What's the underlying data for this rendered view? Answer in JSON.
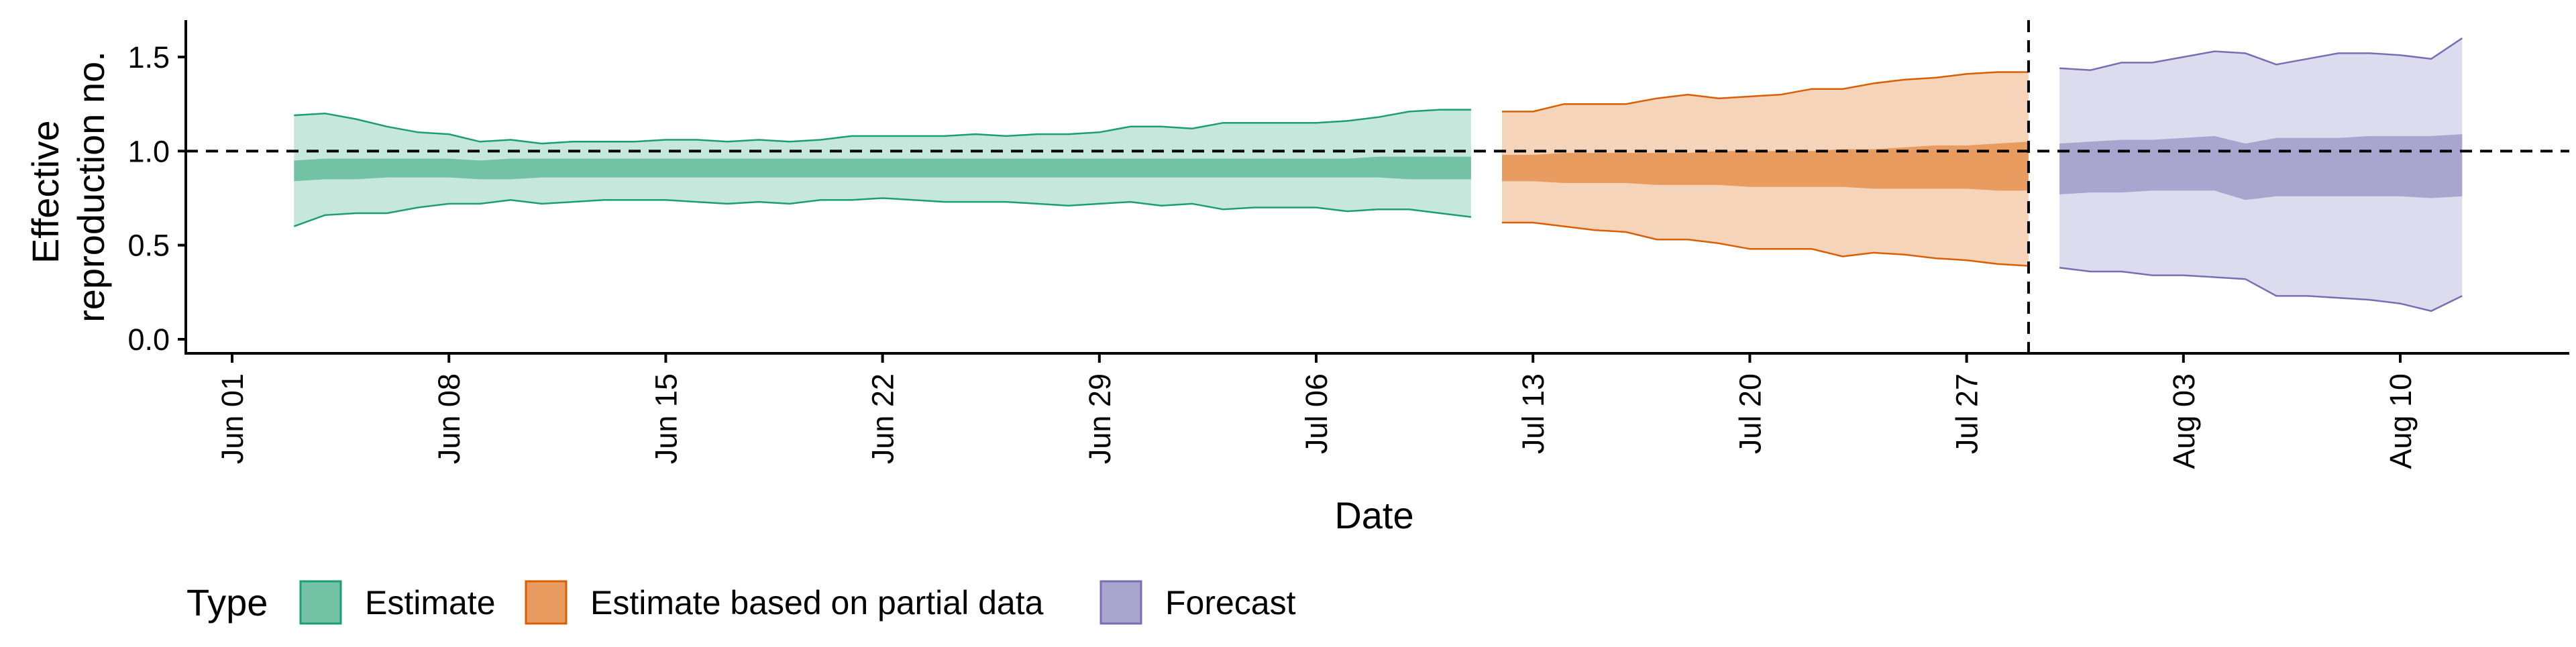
{
  "chart_data": {
    "type": "area",
    "title": "",
    "xlabel": "Date",
    "ylabel_lines": [
      "Effective",
      "reproduction no."
    ],
    "x_range": [
      "2020-05-30",
      "2020-08-16"
    ],
    "y_range": [
      -0.05,
      1.67
    ],
    "y_ticks": [
      {
        "value": 0.0,
        "label": "0.0"
      },
      {
        "value": 0.5,
        "label": "0.5"
      },
      {
        "value": 1.0,
        "label": "1.0"
      },
      {
        "value": 1.5,
        "label": "1.5"
      }
    ],
    "x_ticks": [
      {
        "date": "2020-06-01",
        "label": "Jun 01"
      },
      {
        "date": "2020-06-08",
        "label": "Jun 08"
      },
      {
        "date": "2020-06-15",
        "label": "Jun 15"
      },
      {
        "date": "2020-06-22",
        "label": "Jun 22"
      },
      {
        "date": "2020-06-29",
        "label": "Jun 29"
      },
      {
        "date": "2020-07-06",
        "label": "Jul 06"
      },
      {
        "date": "2020-07-13",
        "label": "Jul 13"
      },
      {
        "date": "2020-07-20",
        "label": "Jul 20"
      },
      {
        "date": "2020-07-27",
        "label": "Jul 27"
      },
      {
        "date": "2020-08-03",
        "label": "Aug 03"
      },
      {
        "date": "2020-08-10",
        "label": "Aug 10"
      }
    ],
    "reference_lines": {
      "horizontal_y": 1.0,
      "vertical_date": "2020-07-29",
      "style": "dashed"
    },
    "grid": false,
    "legend": {
      "position": "bottom-left",
      "title": "Type",
      "entries": [
        {
          "label": "Estimate",
          "fill": "#74c2a6",
          "stroke": "#1b9e77"
        },
        {
          "label": "Estimate based on partial data",
          "fill": "#e99c5f",
          "stroke": "#d95f02"
        },
        {
          "label": "Forecast",
          "fill": "#a8a6cf",
          "stroke": "#7570b3"
        }
      ]
    },
    "series": [
      {
        "name": "Estimate",
        "outer_fill": "#c6e7dc",
        "inner_fill": "#74c2a6",
        "stroke": "#1b9e77",
        "points": [
          {
            "date": "2020-06-03",
            "lo90": 0.6,
            "lo50": 0.84,
            "hi50": 0.95,
            "hi90": 1.19
          },
          {
            "date": "2020-06-04",
            "lo90": 0.66,
            "lo50": 0.85,
            "hi50": 0.96,
            "hi90": 1.2
          },
          {
            "date": "2020-06-05",
            "lo90": 0.67,
            "lo50": 0.85,
            "hi50": 0.96,
            "hi90": 1.17
          },
          {
            "date": "2020-06-06",
            "lo90": 0.67,
            "lo50": 0.86,
            "hi50": 0.96,
            "hi90": 1.13
          },
          {
            "date": "2020-06-07",
            "lo90": 0.7,
            "lo50": 0.86,
            "hi50": 0.96,
            "hi90": 1.1
          },
          {
            "date": "2020-06-08",
            "lo90": 0.72,
            "lo50": 0.86,
            "hi50": 0.96,
            "hi90": 1.09
          },
          {
            "date": "2020-06-09",
            "lo90": 0.72,
            "lo50": 0.85,
            "hi50": 0.95,
            "hi90": 1.05
          },
          {
            "date": "2020-06-10",
            "lo90": 0.74,
            "lo50": 0.85,
            "hi50": 0.96,
            "hi90": 1.06
          },
          {
            "date": "2020-06-11",
            "lo90": 0.72,
            "lo50": 0.86,
            "hi50": 0.96,
            "hi90": 1.04
          },
          {
            "date": "2020-06-12",
            "lo90": 0.73,
            "lo50": 0.86,
            "hi50": 0.96,
            "hi90": 1.05
          },
          {
            "date": "2020-06-13",
            "lo90": 0.74,
            "lo50": 0.86,
            "hi50": 0.96,
            "hi90": 1.05
          },
          {
            "date": "2020-06-14",
            "lo90": 0.74,
            "lo50": 0.86,
            "hi50": 0.96,
            "hi90": 1.05
          },
          {
            "date": "2020-06-15",
            "lo90": 0.74,
            "lo50": 0.86,
            "hi50": 0.96,
            "hi90": 1.06
          },
          {
            "date": "2020-06-16",
            "lo90": 0.73,
            "lo50": 0.86,
            "hi50": 0.96,
            "hi90": 1.06
          },
          {
            "date": "2020-06-17",
            "lo90": 0.72,
            "lo50": 0.86,
            "hi50": 0.96,
            "hi90": 1.05
          },
          {
            "date": "2020-06-18",
            "lo90": 0.73,
            "lo50": 0.86,
            "hi50": 0.96,
            "hi90": 1.06
          },
          {
            "date": "2020-06-19",
            "lo90": 0.72,
            "lo50": 0.86,
            "hi50": 0.96,
            "hi90": 1.05
          },
          {
            "date": "2020-06-20",
            "lo90": 0.74,
            "lo50": 0.86,
            "hi50": 0.96,
            "hi90": 1.06
          },
          {
            "date": "2020-06-21",
            "lo90": 0.74,
            "lo50": 0.86,
            "hi50": 0.96,
            "hi90": 1.08
          },
          {
            "date": "2020-06-22",
            "lo90": 0.75,
            "lo50": 0.86,
            "hi50": 0.96,
            "hi90": 1.08
          },
          {
            "date": "2020-06-23",
            "lo90": 0.74,
            "lo50": 0.86,
            "hi50": 0.96,
            "hi90": 1.08
          },
          {
            "date": "2020-06-24",
            "lo90": 0.73,
            "lo50": 0.86,
            "hi50": 0.96,
            "hi90": 1.08
          },
          {
            "date": "2020-06-25",
            "lo90": 0.73,
            "lo50": 0.86,
            "hi50": 0.96,
            "hi90": 1.09
          },
          {
            "date": "2020-06-26",
            "lo90": 0.73,
            "lo50": 0.86,
            "hi50": 0.96,
            "hi90": 1.08
          },
          {
            "date": "2020-06-27",
            "lo90": 0.72,
            "lo50": 0.86,
            "hi50": 0.96,
            "hi90": 1.09
          },
          {
            "date": "2020-06-28",
            "lo90": 0.71,
            "lo50": 0.86,
            "hi50": 0.96,
            "hi90": 1.09
          },
          {
            "date": "2020-06-29",
            "lo90": 0.72,
            "lo50": 0.86,
            "hi50": 0.96,
            "hi90": 1.1
          },
          {
            "date": "2020-06-30",
            "lo90": 0.73,
            "lo50": 0.86,
            "hi50": 0.96,
            "hi90": 1.13
          },
          {
            "date": "2020-07-01",
            "lo90": 0.71,
            "lo50": 0.86,
            "hi50": 0.96,
            "hi90": 1.13
          },
          {
            "date": "2020-07-02",
            "lo90": 0.72,
            "lo50": 0.86,
            "hi50": 0.96,
            "hi90": 1.12
          },
          {
            "date": "2020-07-03",
            "lo90": 0.69,
            "lo50": 0.86,
            "hi50": 0.96,
            "hi90": 1.15
          },
          {
            "date": "2020-07-04",
            "lo90": 0.7,
            "lo50": 0.86,
            "hi50": 0.96,
            "hi90": 1.15
          },
          {
            "date": "2020-07-05",
            "lo90": 0.7,
            "lo50": 0.86,
            "hi50": 0.96,
            "hi90": 1.15
          },
          {
            "date": "2020-07-06",
            "lo90": 0.7,
            "lo50": 0.86,
            "hi50": 0.96,
            "hi90": 1.15
          },
          {
            "date": "2020-07-07",
            "lo90": 0.68,
            "lo50": 0.86,
            "hi50": 0.96,
            "hi90": 1.16
          },
          {
            "date": "2020-07-08",
            "lo90": 0.69,
            "lo50": 0.86,
            "hi50": 0.97,
            "hi90": 1.18
          },
          {
            "date": "2020-07-09",
            "lo90": 0.69,
            "lo50": 0.85,
            "hi50": 0.97,
            "hi90": 1.21
          },
          {
            "date": "2020-07-10",
            "lo90": 0.67,
            "lo50": 0.85,
            "hi50": 0.97,
            "hi90": 1.22
          },
          {
            "date": "2020-07-11",
            "lo90": 0.65,
            "lo50": 0.85,
            "hi50": 0.97,
            "hi90": 1.22
          }
        ]
      },
      {
        "name": "Estimate based on partial data",
        "outer_fill": "#f6d4b9",
        "inner_fill": "#e99c5f",
        "stroke": "#d95f02",
        "points": [
          {
            "date": "2020-07-12",
            "lo90": 0.62,
            "lo50": 0.84,
            "hi50": 0.98,
            "hi90": 1.21
          },
          {
            "date": "2020-07-13",
            "lo90": 0.62,
            "lo50": 0.84,
            "hi50": 0.98,
            "hi90": 1.21
          },
          {
            "date": "2020-07-14",
            "lo90": 0.6,
            "lo50": 0.83,
            "hi50": 0.99,
            "hi90": 1.25
          },
          {
            "date": "2020-07-15",
            "lo90": 0.58,
            "lo50": 0.83,
            "hi50": 0.99,
            "hi90": 1.25
          },
          {
            "date": "2020-07-16",
            "lo90": 0.57,
            "lo50": 0.83,
            "hi50": 0.99,
            "hi90": 1.25
          },
          {
            "date": "2020-07-17",
            "lo90": 0.53,
            "lo50": 0.82,
            "hi50": 0.99,
            "hi90": 1.28
          },
          {
            "date": "2020-07-18",
            "lo90": 0.53,
            "lo50": 0.82,
            "hi50": 0.99,
            "hi90": 1.3
          },
          {
            "date": "2020-07-19",
            "lo90": 0.51,
            "lo50": 0.82,
            "hi50": 1.0,
            "hi90": 1.28
          },
          {
            "date": "2020-07-20",
            "lo90": 0.48,
            "lo50": 0.81,
            "hi50": 1.0,
            "hi90": 1.29
          },
          {
            "date": "2020-07-21",
            "lo90": 0.48,
            "lo50": 0.81,
            "hi50": 1.0,
            "hi90": 1.3
          },
          {
            "date": "2020-07-22",
            "lo90": 0.48,
            "lo50": 0.81,
            "hi50": 1.0,
            "hi90": 1.33
          },
          {
            "date": "2020-07-23",
            "lo90": 0.44,
            "lo50": 0.81,
            "hi50": 1.01,
            "hi90": 1.33
          },
          {
            "date": "2020-07-24",
            "lo90": 0.46,
            "lo50": 0.8,
            "hi50": 1.01,
            "hi90": 1.36
          },
          {
            "date": "2020-07-25",
            "lo90": 0.45,
            "lo50": 0.8,
            "hi50": 1.02,
            "hi90": 1.38
          },
          {
            "date": "2020-07-26",
            "lo90": 0.43,
            "lo50": 0.8,
            "hi50": 1.03,
            "hi90": 1.39
          },
          {
            "date": "2020-07-27",
            "lo90": 0.42,
            "lo50": 0.8,
            "hi50": 1.03,
            "hi90": 1.41
          },
          {
            "date": "2020-07-28",
            "lo90": 0.4,
            "lo50": 0.79,
            "hi50": 1.04,
            "hi90": 1.42
          },
          {
            "date": "2020-07-29",
            "lo90": 0.39,
            "lo50": 0.79,
            "hi50": 1.05,
            "hi90": 1.42
          }
        ]
      },
      {
        "name": "Forecast",
        "outer_fill": "#dddcee",
        "inner_fill": "#a8a6cf",
        "stroke": "#7570b3",
        "points": [
          {
            "date": "2020-07-30",
            "lo90": 0.38,
            "lo50": 0.77,
            "hi50": 1.04,
            "hi90": 1.44
          },
          {
            "date": "2020-07-31",
            "lo90": 0.36,
            "lo50": 0.78,
            "hi50": 1.05,
            "hi90": 1.43
          },
          {
            "date": "2020-08-01",
            "lo90": 0.36,
            "lo50": 0.78,
            "hi50": 1.06,
            "hi90": 1.47
          },
          {
            "date": "2020-08-02",
            "lo90": 0.34,
            "lo50": 0.79,
            "hi50": 1.06,
            "hi90": 1.47
          },
          {
            "date": "2020-08-03",
            "lo90": 0.34,
            "lo50": 0.79,
            "hi50": 1.07,
            "hi90": 1.5
          },
          {
            "date": "2020-08-04",
            "lo90": 0.33,
            "lo50": 0.79,
            "hi50": 1.08,
            "hi90": 1.53
          },
          {
            "date": "2020-08-05",
            "lo90": 0.32,
            "lo50": 0.74,
            "hi50": 1.04,
            "hi90": 1.52
          },
          {
            "date": "2020-08-06",
            "lo90": 0.23,
            "lo50": 0.76,
            "hi50": 1.07,
            "hi90": 1.46
          },
          {
            "date": "2020-08-07",
            "lo90": 0.23,
            "lo50": 0.76,
            "hi50": 1.07,
            "hi90": 1.49
          },
          {
            "date": "2020-08-08",
            "lo90": 0.22,
            "lo50": 0.76,
            "hi50": 1.07,
            "hi90": 1.52
          },
          {
            "date": "2020-08-09",
            "lo90": 0.21,
            "lo50": 0.76,
            "hi50": 1.08,
            "hi90": 1.52
          },
          {
            "date": "2020-08-10",
            "lo90": 0.19,
            "lo50": 0.76,
            "hi50": 1.08,
            "hi90": 1.51
          },
          {
            "date": "2020-08-11",
            "lo90": 0.15,
            "lo50": 0.75,
            "hi50": 1.08,
            "hi90": 1.49
          },
          {
            "date": "2020-08-12",
            "lo90": 0.23,
            "lo50": 0.76,
            "hi50": 1.09,
            "hi90": 1.6
          }
        ]
      }
    ]
  }
}
